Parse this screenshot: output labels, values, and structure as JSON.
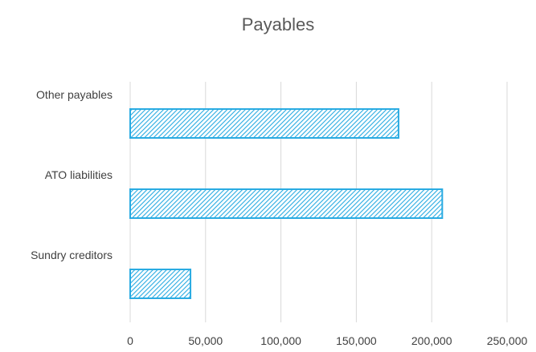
{
  "chart_data": {
    "type": "bar",
    "orientation": "horizontal",
    "title": "Payables",
    "xlabel": "",
    "ylabel": "",
    "categories": [
      "Other payables",
      "ATO liabilities",
      "Sundry creditors"
    ],
    "values": [
      178000,
      207000,
      40000
    ],
    "xlim": [
      0,
      250000
    ],
    "x_ticks": [
      0,
      50000,
      100000,
      150000,
      200000,
      250000
    ],
    "x_tick_labels": [
      "0",
      "50,000",
      "100,000",
      "150,000",
      "200,000",
      "250,000"
    ],
    "grid": "vertical",
    "legend": "none",
    "bar_color": "#29abe2",
    "bar_fill": "diagonal-hatch"
  }
}
